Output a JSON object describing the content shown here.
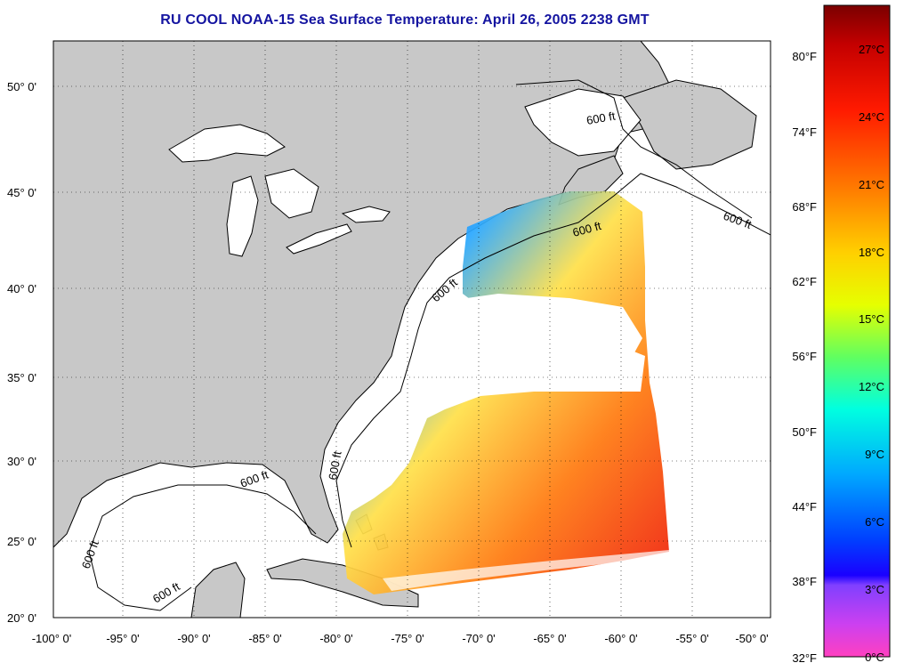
{
  "title": "RU COOL  NOAA-15  Sea Surface Temperature:  April 26, 2005 2238 GMT",
  "map": {
    "lat_labels": [
      "50° 0'",
      "45° 0'",
      "40° 0'",
      "35° 0'",
      "30° 0'",
      "25° 0'",
      "20° 0'"
    ],
    "lon_labels": [
      "-100° 0'",
      "-95° 0'",
      "-90° 0'",
      "-85° 0'",
      "-80° 0'",
      "-75° 0'",
      "-70° 0'",
      "-65° 0'",
      "-60° 0'",
      "-55° 0'",
      "-50° 0'"
    ],
    "isobath_label": "600 ft",
    "land_color": "#c8c8c8",
    "ocean_color": "#ffffff"
  },
  "colorbar": {
    "fahrenheit_labels": [
      "80°F",
      "74°F",
      "68°F",
      "62°F",
      "56°F",
      "50°F",
      "44°F",
      "38°F",
      "32°F"
    ],
    "celsius_labels": [
      "27°C",
      "24°C",
      "21°C",
      "18°C",
      "15°C",
      "12°C",
      "9°C",
      "6°C",
      "3°C",
      "0°C"
    ]
  }
}
